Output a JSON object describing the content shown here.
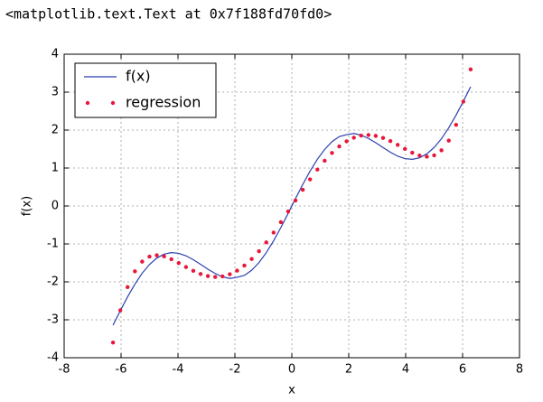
{
  "output_text": "<matplotlib.text.Text at 0x7f188fd70fd0>",
  "chart_data": {
    "type": "line",
    "xlabel": "x",
    "ylabel": "f(x)",
    "x": [
      -6.283,
      -6.027,
      -5.771,
      -5.514,
      -5.258,
      -5.001,
      -4.745,
      -4.488,
      -4.232,
      -3.975,
      -3.719,
      -3.462,
      -3.206,
      -2.949,
      -2.693,
      -2.436,
      -2.18,
      -1.924,
      -1.667,
      -1.411,
      -1.154,
      -0.898,
      -0.641,
      -0.385,
      -0.128,
      0.128,
      0.385,
      0.641,
      0.898,
      1.154,
      1.411,
      1.667,
      1.924,
      2.18,
      2.436,
      2.693,
      2.949,
      3.206,
      3.462,
      3.719,
      3.975,
      4.232,
      4.488,
      4.745,
      5.001,
      5.258,
      5.514,
      5.771,
      6.027,
      6.283
    ],
    "series": [
      {
        "name": "f(x)",
        "color": "#2b3fb0",
        "style": "line",
        "values": [
          -3.142,
          -2.761,
          -2.394,
          -2.061,
          -1.772,
          -1.542,
          -1.373,
          -1.269,
          -1.23,
          -1.249,
          -1.313,
          -1.416,
          -1.539,
          -1.666,
          -1.78,
          -1.866,
          -1.91,
          -1.88,
          -1.829,
          -1.693,
          -1.492,
          -1.231,
          -0.919,
          -0.568,
          -0.192,
          0.192,
          0.568,
          0.919,
          1.231,
          1.492,
          1.693,
          1.829,
          1.88,
          1.91,
          1.866,
          1.78,
          1.666,
          1.539,
          1.416,
          1.313,
          1.249,
          1.23,
          1.269,
          1.373,
          1.542,
          1.772,
          2.061,
          2.394,
          2.761,
          3.142
        ]
      },
      {
        "name": "regression",
        "color": "#e8173a",
        "style": "dots",
        "values": [
          -3.6,
          -2.75,
          -2.138,
          -1.723,
          -1.467,
          -1.336,
          -1.299,
          -1.33,
          -1.404,
          -1.504,
          -1.61,
          -1.71,
          -1.792,
          -1.848,
          -1.87,
          -1.855,
          -1.8,
          -1.705,
          -1.57,
          -1.398,
          -1.193,
          -0.959,
          -0.702,
          -0.428,
          -0.144,
          0.144,
          0.428,
          0.702,
          0.959,
          1.193,
          1.398,
          1.57,
          1.705,
          1.8,
          1.855,
          1.87,
          1.848,
          1.792,
          1.71,
          1.61,
          1.504,
          1.404,
          1.33,
          1.299,
          1.336,
          1.467,
          1.723,
          2.138,
          2.75,
          3.6
        ]
      }
    ],
    "xlim": [
      -8,
      8
    ],
    "ylim": [
      -4,
      4
    ],
    "xticks": [
      -8,
      -6,
      -4,
      -2,
      0,
      2,
      4,
      6,
      8
    ],
    "yticks": [
      -4,
      -3,
      -2,
      -1,
      0,
      1,
      2,
      3,
      4
    ],
    "grid": true,
    "legend": "upper-left"
  }
}
